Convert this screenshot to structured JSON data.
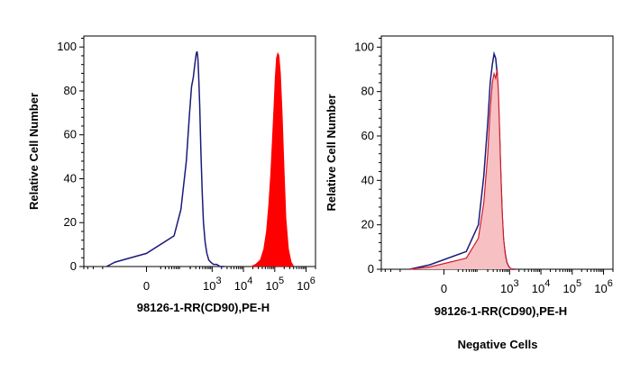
{
  "colors": {
    "unstained_line": "#1a1a7a",
    "stained_fill": "#ff0000",
    "negative_stained_line": "#d01a2a",
    "negative_stained_fill": "#f7c1c4"
  },
  "caption": "Negative Cells",
  "chart_data": [
    {
      "type": "area",
      "title": "",
      "xlabel": "98126-1-RR(CD90),PE-H",
      "ylabel": "Relative Cell Number",
      "xscale": "biexponential",
      "xlim": [
        -800,
        2000000
      ],
      "ylim": [
        0,
        105
      ],
      "yticks": [
        0,
        20,
        40,
        60,
        80,
        100
      ],
      "xticks": [
        {
          "value": 0,
          "base": "0",
          "exp": ""
        },
        {
          "value": 1000,
          "base": "10",
          "exp": "3"
        },
        {
          "value": 10000,
          "base": "10",
          "exp": "4"
        },
        {
          "value": 100000,
          "base": "10",
          "exp": "5"
        },
        {
          "value": 1000000,
          "base": "10",
          "exp": "6"
        }
      ],
      "grid": false,
      "series": [
        {
          "style": "line",
          "color": "#1a1a7a",
          "x": [
            -150,
            -80,
            0,
            60,
            100,
            150,
            190,
            220,
            250,
            280,
            310,
            330,
            350,
            370,
            400,
            440,
            480,
            530,
            600,
            680,
            780,
            900,
            1100,
            1400,
            1800,
            2500
          ],
          "y": [
            0,
            2,
            6,
            14,
            26,
            48,
            70,
            82,
            86,
            92,
            97,
            98,
            95,
            88,
            74,
            52,
            34,
            20,
            11,
            6,
            3,
            2,
            1,
            1,
            0,
            0
          ]
        },
        {
          "style": "filled",
          "color": "#ff0000",
          "x": [
            18000,
            25000,
            35000,
            45000,
            55000,
            65000,
            75000,
            85000,
            95000,
            105000,
            115000,
            125000,
            135000,
            150000,
            170000,
            195000,
            225000,
            270000,
            330000,
            400000
          ],
          "y": [
            0,
            1,
            3,
            8,
            16,
            28,
            42,
            58,
            72,
            86,
            95,
            97,
            96,
            88,
            70,
            45,
            22,
            8,
            2,
            0
          ]
        }
      ]
    },
    {
      "type": "area",
      "title": "",
      "xlabel": "98126-1-RR(CD90),PE-H",
      "ylabel": "Relative Cell Number",
      "xscale": "biexponential",
      "xlim": [
        -800,
        2000000
      ],
      "ylim": [
        0,
        105
      ],
      "yticks": [
        0,
        20,
        40,
        60,
        80,
        100
      ],
      "xticks": [
        {
          "value": 0,
          "base": "0",
          "exp": ""
        },
        {
          "value": 1000,
          "base": "10",
          "exp": "3"
        },
        {
          "value": 10000,
          "base": "10",
          "exp": "4"
        },
        {
          "value": 100000,
          "base": "10",
          "exp": "5"
        },
        {
          "value": 1000000,
          "base": "10",
          "exp": "6"
        }
      ],
      "grid": false,
      "series": [
        {
          "style": "line",
          "color": "#1a1a7a",
          "x": [
            -100,
            -20,
            40,
            100,
            150,
            200,
            240,
            280,
            320,
            360,
            400,
            440,
            480,
            530,
            580,
            640,
            720,
            820,
            950,
            1150,
            1500
          ],
          "y": [
            0,
            2,
            8,
            20,
            42,
            66,
            84,
            92,
            97,
            95,
            88,
            74,
            58,
            40,
            24,
            13,
            7,
            3,
            1,
            0,
            0
          ]
        },
        {
          "style": "filled",
          "color": "#d01a2a",
          "fill": "#f7c1c4",
          "x": [
            -100,
            -20,
            40,
            100,
            150,
            200,
            240,
            280,
            320,
            360,
            400,
            440,
            480,
            530,
            580,
            640,
            720,
            820,
            950,
            1150,
            1500
          ],
          "y": [
            0,
            1,
            5,
            14,
            30,
            52,
            72,
            84,
            88,
            86,
            90,
            80,
            62,
            42,
            26,
            14,
            7,
            3,
            1,
            0,
            0
          ]
        }
      ]
    }
  ]
}
